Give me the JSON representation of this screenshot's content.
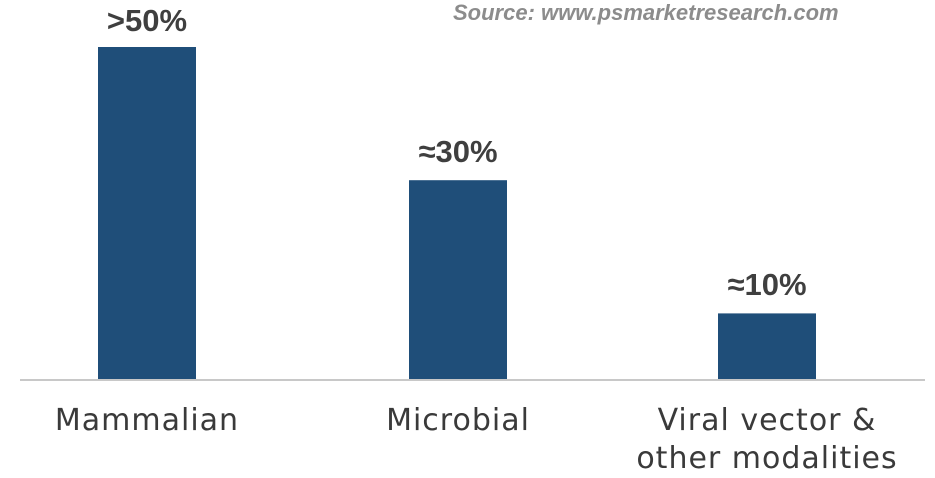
{
  "source_note": "Source: www.psmarketresearch.com",
  "chart_data": {
    "type": "bar",
    "categories": [
      "Mammalian",
      "Microbial",
      "Viral vector & other modalities"
    ],
    "category_lines": [
      [
        "Mammalian"
      ],
      [
        "Microbial"
      ],
      [
        "Viral vector &",
        "other modalities"
      ]
    ],
    "values": [
      50,
      30,
      10
    ],
    "data_labels": [
      ">50%",
      "≈30%",
      "≈10%"
    ],
    "ylim": [
      0,
      50
    ],
    "grid": false,
    "bar_color": "#1f4e79",
    "axis_color": "#c8c8c8"
  }
}
